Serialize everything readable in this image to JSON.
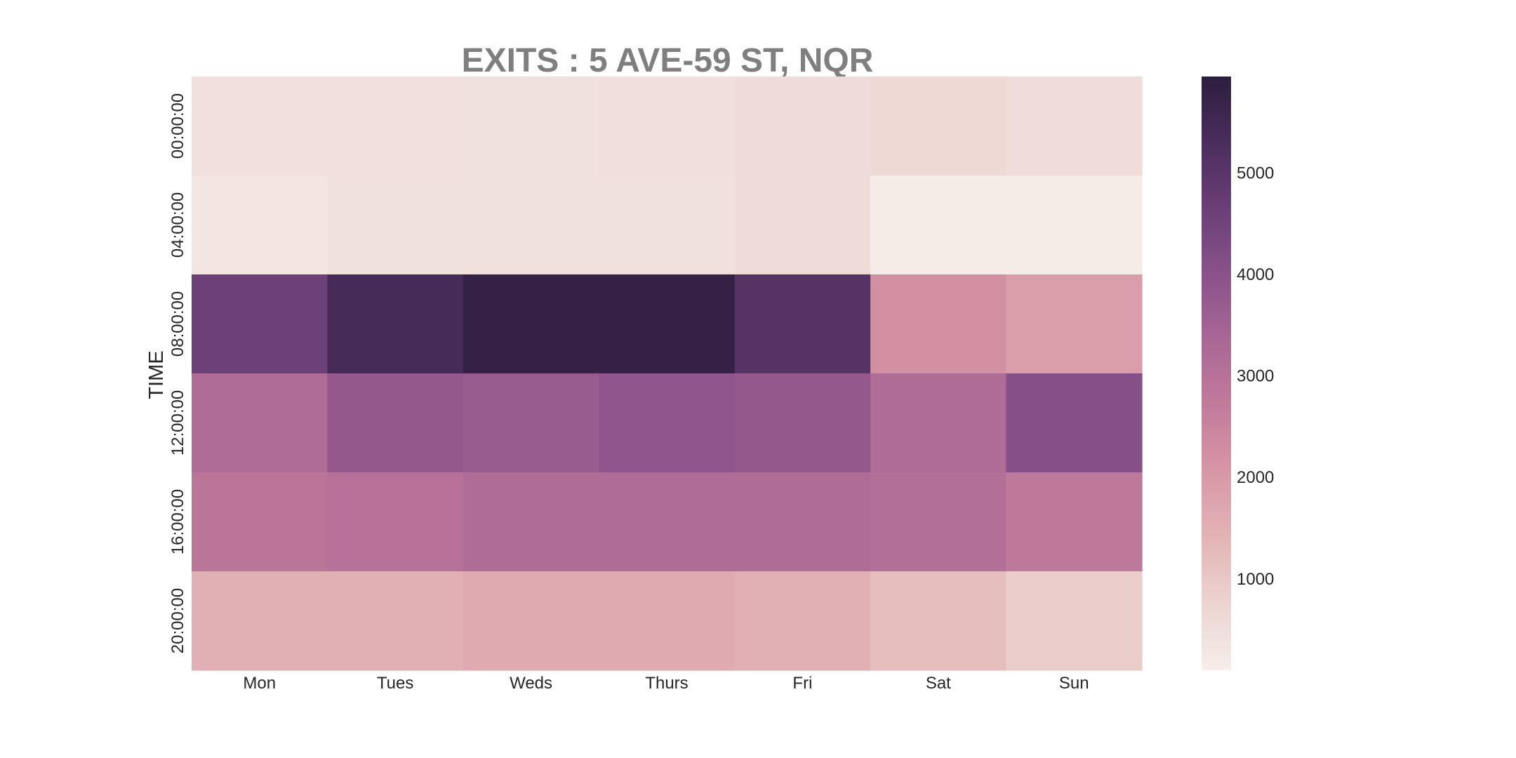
{
  "chart_data": {
    "type": "heatmap",
    "title": "EXITS : 5 AVE-59 ST, NQR",
    "xlabel": "",
    "ylabel": "TIME",
    "x_categories": [
      "Mon",
      "Tues",
      "Weds",
      "Thurs",
      "Fri",
      "Sat",
      "Sun"
    ],
    "y_categories": [
      "00:00:00",
      "04:00:00",
      "08:00:00",
      "12:00:00",
      "16:00:00",
      "20:00:00"
    ],
    "values": [
      [
        450,
        450,
        430,
        480,
        570,
        620,
        520
      ],
      [
        300,
        430,
        430,
        430,
        560,
        150,
        150
      ],
      [
        4600,
        5400,
        5800,
        5800,
        5100,
        2200,
        1900
      ],
      [
        3200,
        3800,
        3700,
        3900,
        3800,
        3200,
        4100
      ],
      [
        2900,
        3000,
        3200,
        3200,
        3200,
        3100,
        2800
      ],
      [
        1500,
        1500,
        1600,
        1600,
        1500,
        1200,
        900
      ]
    ],
    "colorbar": {
      "vmin": 100,
      "vmax": 5950,
      "ticks": [
        "1000",
        "2000",
        "3000",
        "4000",
        "5000"
      ]
    },
    "colors": {
      "palette": [
        "#f6eeea",
        "#ecd4d0",
        "#e3b4b6",
        "#d797a6",
        "#c17c9b",
        "#a96795",
        "#8a528a",
        "#6a3f77",
        "#4b2d5d",
        "#2d1e3e"
      ],
      "title": "#7f7f7f",
      "text": "#262626"
    }
  }
}
